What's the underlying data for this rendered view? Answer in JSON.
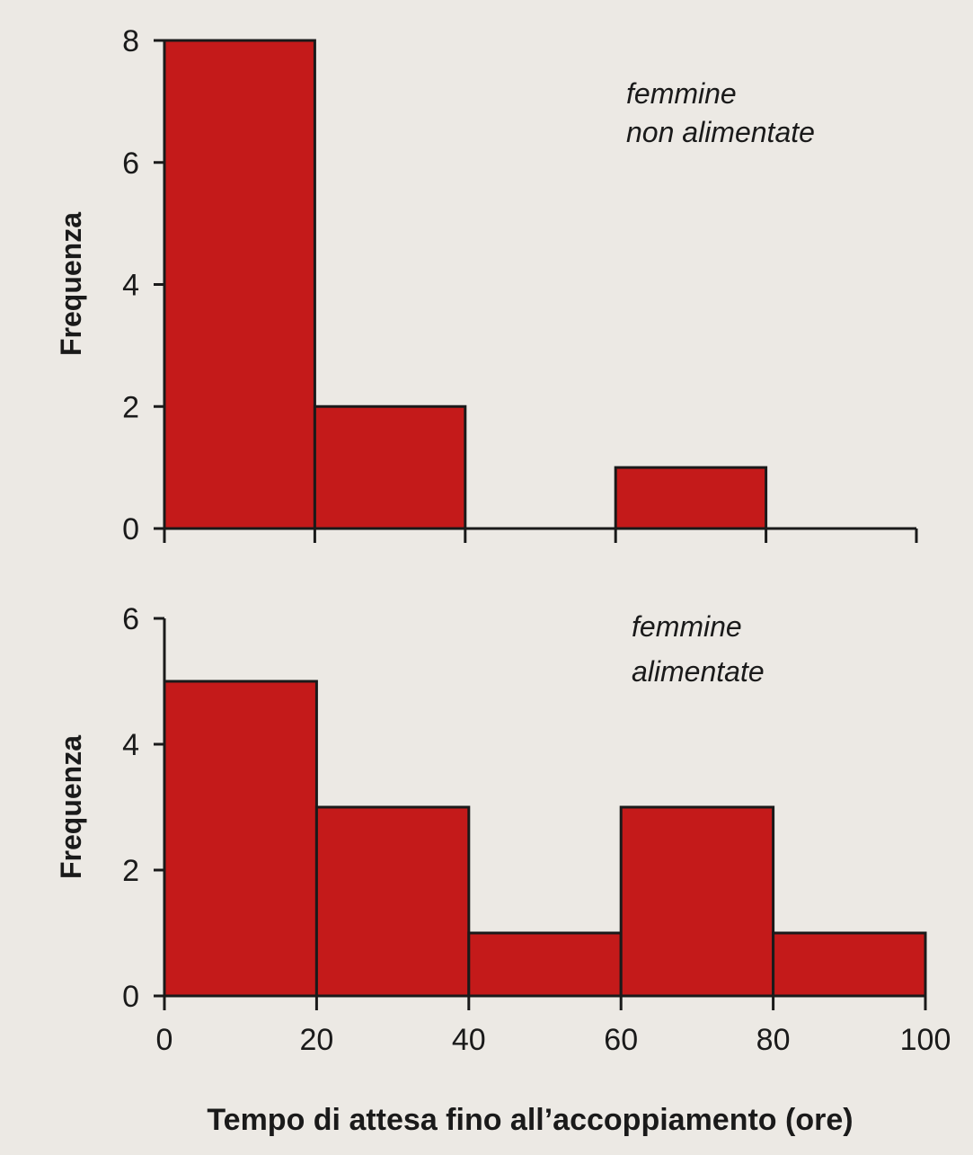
{
  "chart_data": [
    {
      "type": "bar",
      "bins": [
        [
          0,
          20
        ],
        [
          20,
          40
        ],
        [
          40,
          60
        ],
        [
          60,
          80
        ],
        [
          80,
          100
        ]
      ],
      "values": [
        8,
        2,
        0,
        1,
        0
      ],
      "xlim": [
        0,
        100
      ],
      "ylim": [
        0,
        8
      ],
      "yticks": [
        "0",
        "2",
        "4",
        "6",
        "8"
      ],
      "ylabel": "Frequenza",
      "annotation": [
        "femmine",
        "non alimentate"
      ],
      "grid": false,
      "bar_color": "#c41a1a"
    },
    {
      "type": "bar",
      "bins": [
        [
          0,
          20
        ],
        [
          20,
          40
        ],
        [
          40,
          60
        ],
        [
          60,
          80
        ],
        [
          80,
          100
        ]
      ],
      "values": [
        5,
        3,
        1,
        3,
        1
      ],
      "xlim": [
        0,
        100
      ],
      "ylim": [
        0,
        6
      ],
      "yticks": [
        "0",
        "2",
        "4",
        "6"
      ],
      "xticks": [
        "0",
        "20",
        "40",
        "60",
        "80",
        "100"
      ],
      "ylabel": "Frequenza",
      "xlabel": "Tempo di attesa fino all’accoppiamento (ore)",
      "annotation": [
        "femmine",
        "alimentate"
      ],
      "grid": false,
      "bar_color": "#c41a1a"
    }
  ]
}
